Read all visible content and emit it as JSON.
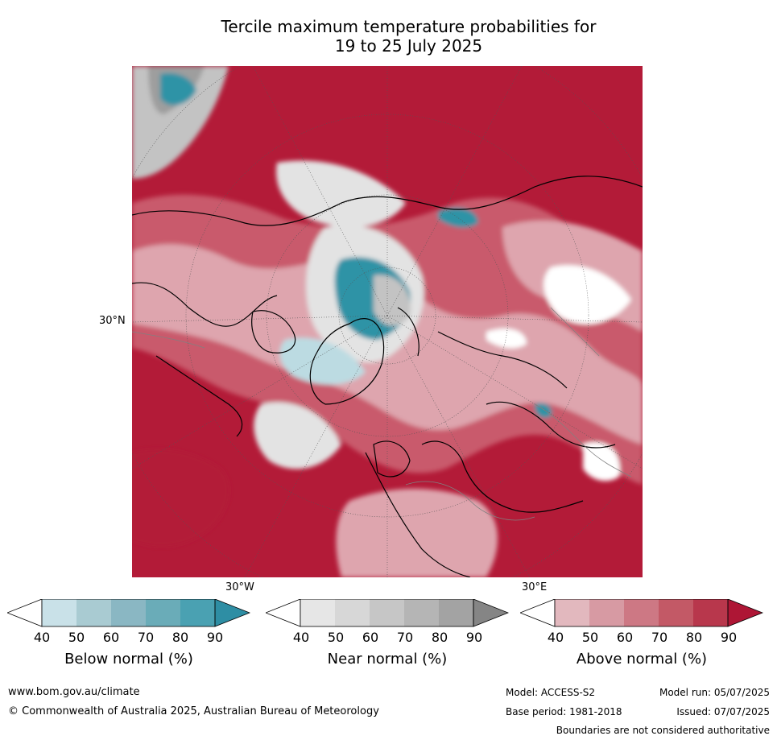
{
  "title_line1": "Tercile maximum temperature probabilities for",
  "title_line2": "19 to 25 July 2025",
  "map": {
    "lat_label": "30°N",
    "lon_label_left": "30°W",
    "lon_label_right": "30°E",
    "colors": {
      "above_dark": "#b31b38",
      "above_mid": "#c95a6c",
      "above_light": "#dea5ae",
      "near_light": "#e3e3e3",
      "near_mid": "#c3c3c3",
      "near_dark": "#9e9e9e",
      "below_light": "#bcdbe2",
      "below_dark": "#2d93a6",
      "land_outline": "#000000",
      "border": "#808080"
    }
  },
  "colorbars": [
    {
      "label": "Below normal (%)",
      "ticks": [
        "40",
        "50",
        "60",
        "70",
        "80",
        "90"
      ],
      "colors": [
        "#ffffff",
        "#c9e1e8",
        "#a9cbd2",
        "#8ab7c3",
        "#6aacb8",
        "#4aa1b2",
        "#2e8ea4"
      ]
    },
    {
      "label": "Near normal (%)",
      "ticks": [
        "40",
        "50",
        "60",
        "70",
        "80",
        "90"
      ],
      "colors": [
        "#ffffff",
        "#e6e6e6",
        "#d7d7d7",
        "#c6c6c6",
        "#b5b5b5",
        "#a3a3a3",
        "#858585"
      ]
    },
    {
      "label": "Above normal (%)",
      "ticks": [
        "40",
        "50",
        "60",
        "70",
        "80",
        "90"
      ],
      "colors": [
        "#ffffff",
        "#e2b8be",
        "#d79aa3",
        "#cd7884",
        "#c35966",
        "#b8374c",
        "#ae1635"
      ]
    }
  ],
  "footer": {
    "url": "www.bom.gov.au/climate",
    "copyright": "© Commonwealth of Australia 2025, Australian Bureau of Meteorology",
    "model": "Model: ACCESS-S2",
    "model_run": "Model run: 05/07/2025",
    "base_period": "Base period: 1981-2018",
    "issued": "Issued: 07/07/2025",
    "disclaimer": "Boundaries are not considered authoritative"
  }
}
